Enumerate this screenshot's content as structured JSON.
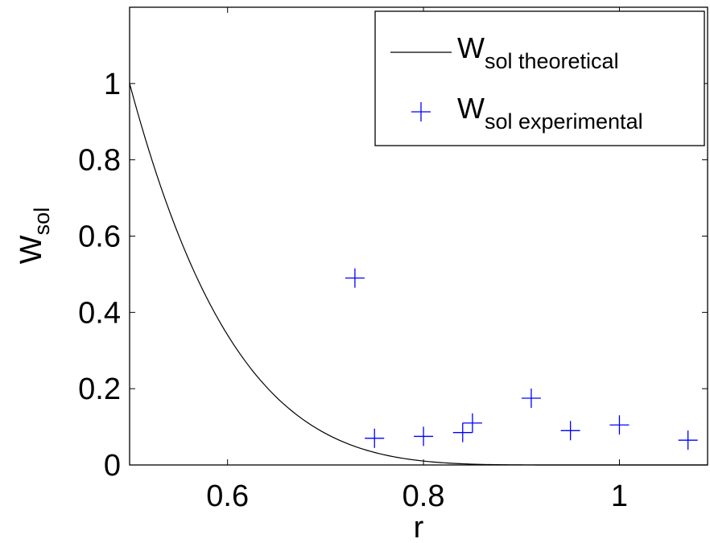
{
  "chart_data": {
    "type": "line+scatter",
    "xlabel": "r",
    "ylabel": {
      "main": "W",
      "sub": "sol"
    },
    "xlim": [
      0.5,
      1.09
    ],
    "ylim": [
      0,
      1.2
    ],
    "xticks": [
      0.6,
      0.8,
      1
    ],
    "xtick_labels": [
      "0.6",
      "0.8",
      "1"
    ],
    "yticks": [
      0,
      0.2,
      0.4,
      0.6,
      0.8,
      1
    ],
    "ytick_labels": [
      "0",
      "0.2",
      "0.4",
      "0.6",
      "0.8",
      "1"
    ],
    "grid": false,
    "legend_position": "top-right",
    "series": [
      {
        "name": {
          "main": "W",
          "sub": "sol theoretical"
        },
        "kind": "line",
        "color": "#000000",
        "curve": "decay to zero at r = 0.97",
        "x": [
          0.5,
          0.55,
          0.6,
          0.65,
          0.7,
          0.75,
          0.8,
          0.85,
          0.9,
          0.95,
          0.97
        ],
        "y": [
          1.0,
          0.72,
          0.51,
          0.35,
          0.22,
          0.125,
          0.06,
          0.022,
          0.005,
          0.0003,
          0.0
        ]
      },
      {
        "name": {
          "main": "W",
          "sub": "sol experimental"
        },
        "kind": "scatter",
        "marker": "plus",
        "color": "#0000ff",
        "x": [
          0.73,
          0.75,
          0.8,
          0.84,
          0.85,
          0.91,
          0.95,
          1.0,
          1.07
        ],
        "y": [
          0.49,
          0.07,
          0.075,
          0.085,
          0.11,
          0.175,
          0.09,
          0.105,
          0.065
        ]
      }
    ]
  }
}
